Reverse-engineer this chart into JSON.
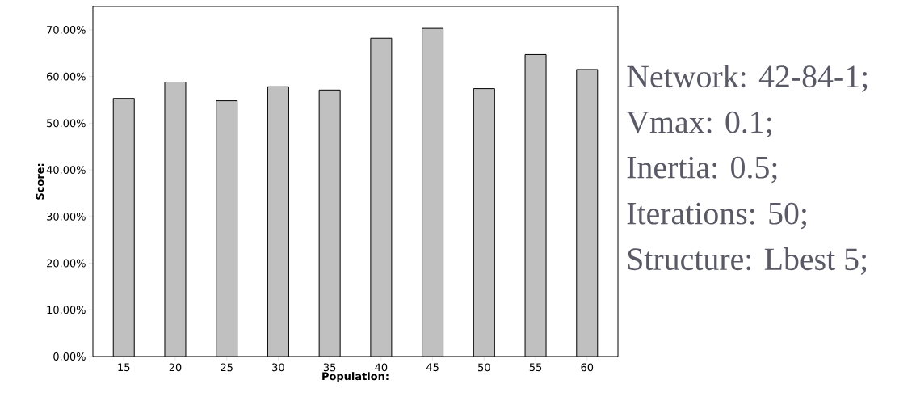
{
  "chart_data": {
    "type": "bar",
    "xlabel": "Population:",
    "ylabel": "Score:",
    "categories": [
      "15",
      "20",
      "25",
      "30",
      "35",
      "40",
      "45",
      "50",
      "55",
      "60"
    ],
    "values": [
      55.3,
      58.8,
      54.8,
      57.8,
      57.1,
      68.2,
      70.3,
      57.4,
      64.7,
      61.5
    ],
    "color": "#c0c0c0",
    "ylim": [
      0,
      75
    ],
    "yticks": [
      {
        "value": 0,
        "label": "0.00%"
      },
      {
        "value": 10,
        "label": "10.00%"
      },
      {
        "value": 20,
        "label": "20.00%"
      },
      {
        "value": 30,
        "label": "30.00%"
      },
      {
        "value": 40,
        "label": "40.00%"
      },
      {
        "value": 50,
        "label": "50.00%"
      },
      {
        "value": 60,
        "label": "60.00%"
      },
      {
        "value": 70,
        "label": "70.00%"
      }
    ],
    "annotations": [
      "Network: 42-84-1;",
      "Vmax: 0.1;",
      "Inertia: 0.5;",
      "Iterations: 50;",
      "Structure: Lbest 5;"
    ]
  }
}
